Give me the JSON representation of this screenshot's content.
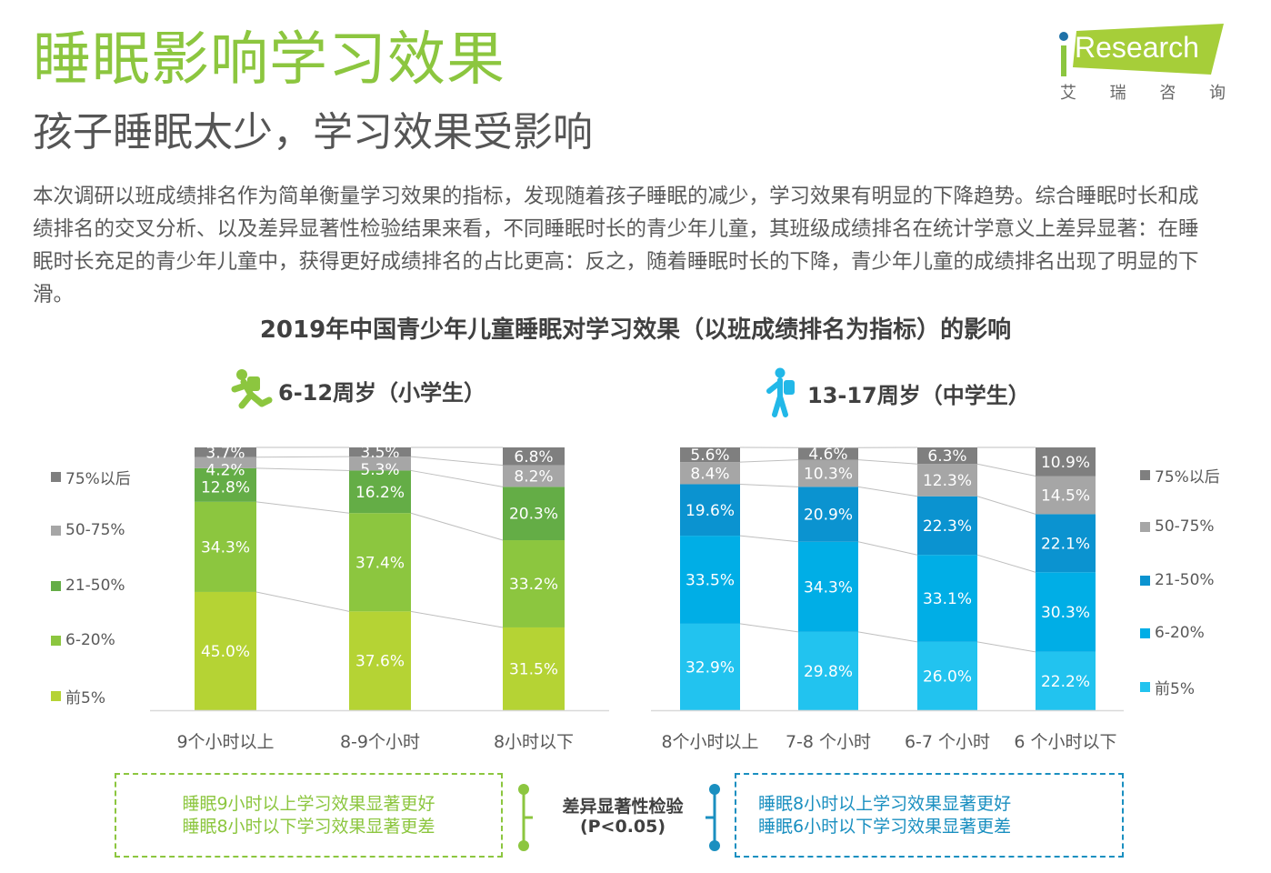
{
  "header": {
    "title": "睡眠影响学习效果",
    "subtitle": "孩子睡眠太少，学习效果受影响"
  },
  "logo": {
    "brand": "Research",
    "brand_prefix": "i",
    "cn_chars": [
      "艾",
      "瑞",
      "咨",
      "询"
    ],
    "colors": {
      "band": "#a6ce39",
      "dot": "#1f72a8"
    }
  },
  "paragraph": "本次调研以班成绩排名作为简单衡量学习效果的指标，发现随着孩子睡眠的减少，学习效果有明显的下降趋势。综合睡眠时长和成绩排名的交叉分析、以及差异显著性检验结果来看，不同睡眠时长的青少年儿童，其班级成绩排名在统计学意义上差异显著：在睡眠时长充足的青少年儿童中，获得更好成绩排名的占比更高：反之，随着睡眠时长的下降，青少年儿童的成绩排名出现了明显的下滑。",
  "chart_data": [
    {
      "type": "bar",
      "stacked": true,
      "title": "2019年中国青少年儿童睡眠对学习效果（以班成绩排名为指标）的影响",
      "group_label": "6-12周岁（小学生）",
      "group_icon": "running-child-icon",
      "categories": [
        "9个小时以上",
        "8-9个小时",
        "8小时以下"
      ],
      "series": [
        {
          "name": "前5%",
          "color": "#b5d334",
          "values": [
            45.0,
            37.6,
            31.5
          ]
        },
        {
          "name": "6-20%",
          "color": "#8cc63f",
          "values": [
            34.3,
            37.4,
            33.2
          ]
        },
        {
          "name": "21-50%",
          "color": "#64ad46",
          "values": [
            12.8,
            16.2,
            20.3
          ]
        },
        {
          "name": "50-75%",
          "color": "#a6a6a6",
          "values": [
            4.2,
            5.3,
            8.2
          ]
        },
        {
          "name": "75%以后",
          "color": "#7f7f7f",
          "values": [
            3.7,
            3.5,
            6.8
          ]
        }
      ],
      "unit": "%",
      "ylim": [
        0,
        100
      ],
      "legend_position": "left",
      "xlabel": "",
      "ylabel": ""
    },
    {
      "type": "bar",
      "stacked": true,
      "group_label": "13-17周岁（中学生）",
      "group_icon": "walking-student-icon",
      "categories": [
        "8个小时以上",
        "7-8  个小时",
        "6-7  个小时",
        "6  个小时以下"
      ],
      "series": [
        {
          "name": "前5%",
          "color": "#22c3ef",
          "values": [
            32.9,
            29.8,
            26.0,
            22.2
          ]
        },
        {
          "name": "6-20%",
          "color": "#00aee6",
          "values": [
            33.5,
            34.3,
            33.1,
            30.3
          ]
        },
        {
          "name": "21-50%",
          "color": "#0b93d0",
          "values": [
            19.6,
            20.9,
            22.3,
            22.1
          ]
        },
        {
          "name": "50-75%",
          "color": "#a6a6a6",
          "values": [
            8.4,
            10.3,
            12.3,
            14.5
          ]
        },
        {
          "name": "75%以后",
          "color": "#7f7f7f",
          "values": [
            5.6,
            4.6,
            6.3,
            10.9
          ]
        }
      ],
      "unit": "%",
      "ylim": [
        0,
        100
      ],
      "legend_position": "right",
      "xlabel": "",
      "ylabel": ""
    }
  ],
  "legend_order": [
    "75%以后",
    "50-75%",
    "21-50%",
    "6-20%",
    "前5%"
  ],
  "notes": {
    "left": [
      "睡眠9小时以上学习效果显著更好",
      "睡眠8小时以下学习效果显著更差"
    ],
    "right": [
      "睡眠8小时以上学习效果显著更好",
      "睡眠6小时以下学习效果显著更差"
    ],
    "significance": [
      "差异显著性检验",
      "(P<0.05)"
    ],
    "colors": {
      "left": "#8cc63f",
      "right": "#1a8fc0"
    }
  }
}
